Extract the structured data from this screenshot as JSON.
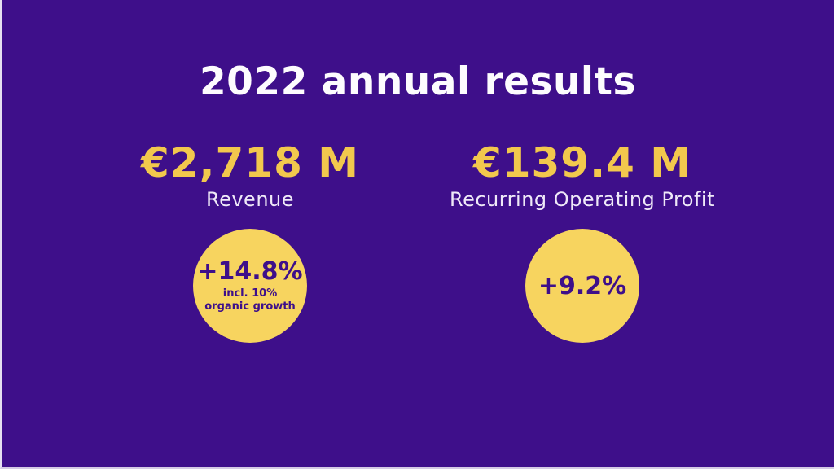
{
  "slide": {
    "title": "2022 annual results",
    "colors": {
      "background_purple": "#3E0F8A",
      "value_yellow": "#F2C84D",
      "badge_yellow": "#F7D45F",
      "badge_text_purple": "#3E0F8A",
      "label_light": "#EFE9F8",
      "title_white": "#FDFCFE"
    },
    "metrics": [
      {
        "value": "€2,718 M",
        "label": "Revenue",
        "badge_value": "+14.8%",
        "badge_note": "incl. 10% organic growth"
      },
      {
        "value": "€139.4 M",
        "label": "Recurring Operating Profit",
        "badge_value": "+9.2%",
        "badge_note": ""
      }
    ]
  }
}
